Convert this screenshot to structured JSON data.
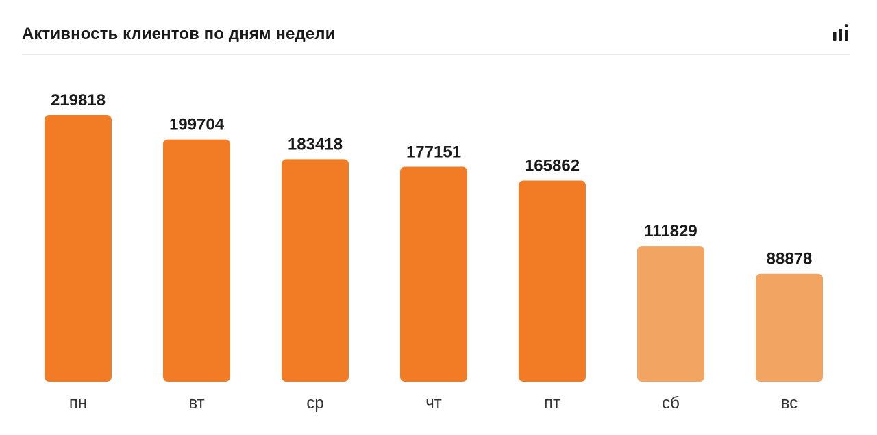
{
  "header": {
    "title": "Активность клиентов по дням недели",
    "chart_icon": "bar-chart-icon"
  },
  "colors": {
    "weekday_bar": "#F27B26",
    "weekend_bar": "#F2A463",
    "text": "#1a1a1a",
    "axis_label": "#333333",
    "divider": "#ebebeb"
  },
  "chart_data": {
    "type": "bar",
    "title": "Активность клиентов по дням недели",
    "categories": [
      "пн",
      "вт",
      "ср",
      "чт",
      "пт",
      "сб",
      "вс"
    ],
    "values": [
      219818,
      199704,
      183418,
      177151,
      165862,
      111829,
      88878
    ],
    "highlight": [
      "weekday",
      "weekday",
      "weekday",
      "weekday",
      "weekday",
      "weekend",
      "weekend"
    ],
    "data_labels": true,
    "grid": false,
    "xlabel": "",
    "ylabel": ""
  }
}
